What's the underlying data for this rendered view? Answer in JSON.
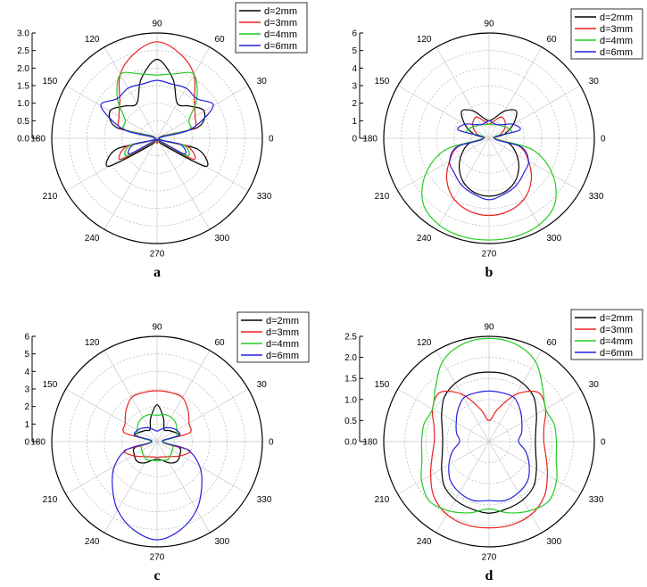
{
  "figure": {
    "panels": [
      {
        "label": "a"
      },
      {
        "label": "b"
      },
      {
        "label": "c"
      },
      {
        "label": "d"
      }
    ]
  },
  "chart_data": [
    {
      "type": "polar",
      "panel": "a",
      "angle_ticks": [
        "0",
        "30",
        "60",
        "90",
        "120",
        "150",
        "180",
        "210",
        "240",
        "270",
        "300",
        "330"
      ],
      "rlim": [
        0,
        3.0
      ],
      "r_ticks": [
        "0.0",
        "0.5",
        "1.0",
        "1.5",
        "2.0",
        "2.5",
        "3.0"
      ],
      "grid": true,
      "legend_position": "top-right",
      "theta_deg": [
        0,
        15,
        30,
        45,
        60,
        75,
        90,
        105,
        120,
        135,
        150,
        165,
        180,
        195,
        210,
        225,
        240,
        255,
        270,
        285,
        300,
        315,
        330,
        345
      ],
      "series": [
        {
          "name": "d=2mm",
          "color": "#000000",
          "r": [
            0.05,
            1.2,
            1.55,
            1.3,
            1.15,
            1.75,
            2.25,
            1.75,
            1.15,
            1.3,
            1.55,
            1.2,
            0.05,
            1.2,
            1.6,
            0.3,
            0.05,
            0.05,
            0.05,
            0.05,
            0.05,
            0.3,
            1.6,
            1.2
          ]
        },
        {
          "name": "d=3mm",
          "color": "#e8201e",
          "r": [
            0.05,
            1.05,
            1.25,
            1.5,
            2.1,
            2.5,
            2.75,
            2.5,
            2.1,
            1.5,
            1.25,
            1.05,
            0.05,
            0.9,
            1.2,
            0.2,
            0.05,
            0.08,
            0.15,
            0.08,
            0.05,
            0.2,
            1.2,
            0.9
          ]
        },
        {
          "name": "d=4mm",
          "color": "#22cc22",
          "r": [
            0.05,
            0.95,
            1.05,
            1.6,
            2.1,
            1.9,
            1.8,
            1.9,
            2.1,
            1.6,
            1.05,
            0.95,
            0.05,
            0.8,
            1.0,
            0.15,
            0.05,
            0.05,
            0.05,
            0.05,
            0.05,
            0.15,
            1.0,
            0.8
          ]
        },
        {
          "name": "d=6mm",
          "color": "#2222dd",
          "r": [
            0.05,
            1.0,
            1.85,
            1.6,
            1.65,
            1.6,
            1.65,
            1.6,
            1.65,
            1.6,
            1.85,
            1.0,
            0.05,
            0.7,
            0.9,
            0.1,
            0.05,
            0.05,
            0.05,
            0.05,
            0.05,
            0.1,
            0.9,
            0.7
          ]
        }
      ]
    },
    {
      "type": "polar",
      "panel": "b",
      "angle_ticks": [
        "0",
        "30",
        "60",
        "90",
        "120",
        "150",
        "180",
        "210",
        "240",
        "270",
        "300",
        "330"
      ],
      "rlim": [
        0,
        6
      ],
      "r_ticks": [
        "0",
        "1",
        "2",
        "3",
        "4",
        "5",
        "6"
      ],
      "grid": true,
      "legend_position": "top-right",
      "theta_deg": [
        0,
        15,
        30,
        45,
        60,
        75,
        90,
        105,
        120,
        135,
        150,
        165,
        180,
        195,
        210,
        225,
        240,
        255,
        270,
        285,
        300,
        315,
        330,
        345
      ],
      "series": [
        {
          "name": "d=2mm",
          "color": "#000000",
          "r": [
            0.3,
            0.9,
            1.6,
            2.2,
            1.8,
            1.2,
            1.0,
            1.2,
            1.8,
            2.2,
            1.6,
            0.9,
            0.3,
            1.2,
            1.8,
            2.4,
            2.9,
            3.2,
            3.3,
            3.2,
            2.9,
            2.4,
            1.8,
            1.2
          ]
        },
        {
          "name": "d=3mm",
          "color": "#e8201e",
          "r": [
            0.3,
            0.6,
            1.0,
            1.3,
            1.4,
            1.0,
            0.8,
            1.0,
            1.4,
            1.3,
            1.0,
            0.6,
            0.3,
            1.8,
            2.6,
            3.4,
            4.0,
            4.3,
            4.4,
            4.3,
            4.0,
            3.4,
            2.6,
            1.8
          ]
        },
        {
          "name": "d=4mm",
          "color": "#22cc22",
          "r": [
            0.3,
            1.3,
            1.2,
            1.0,
            0.9,
            0.8,
            0.8,
            0.8,
            0.9,
            1.0,
            1.2,
            1.3,
            0.3,
            2.6,
            4.2,
            5.3,
            5.7,
            5.8,
            5.8,
            5.8,
            5.7,
            5.3,
            4.2,
            2.6
          ]
        },
        {
          "name": "d=6mm",
          "color": "#2222dd",
          "r": [
            0.3,
            1.8,
            1.6,
            1.1,
            0.9,
            0.9,
            1.0,
            0.9,
            0.9,
            1.1,
            1.6,
            1.8,
            0.3,
            1.9,
            2.6,
            2.8,
            3.1,
            3.3,
            3.5,
            3.3,
            3.1,
            2.8,
            2.6,
            1.9
          ]
        }
      ]
    },
    {
      "type": "polar",
      "panel": "c",
      "angle_ticks": [
        "0",
        "30",
        "60",
        "90",
        "120",
        "150",
        "180",
        "210",
        "240",
        "270",
        "300",
        "330"
      ],
      "rlim": [
        0,
        6
      ],
      "r_ticks": [
        "0",
        "1",
        "2",
        "3",
        "4",
        "5",
        "6"
      ],
      "grid": true,
      "legend_position": "top-right",
      "theta_deg": [
        0,
        15,
        30,
        45,
        60,
        75,
        90,
        105,
        120,
        135,
        150,
        165,
        180,
        195,
        210,
        225,
        240,
        255,
        270,
        285,
        300,
        315,
        330,
        345
      ],
      "series": [
        {
          "name": "d=2mm",
          "color": "#000000",
          "r": [
            0.3,
            1.3,
            1.1,
            0.9,
            0.8,
            1.4,
            2.1,
            1.4,
            0.8,
            0.9,
            1.1,
            1.3,
            0.3,
            1.3,
            1.5,
            1.6,
            1.4,
            1.1,
            1.0,
            1.1,
            1.4,
            1.6,
            1.5,
            1.3
          ]
        },
        {
          "name": "d=3mm",
          "color": "#e8201e",
          "r": [
            0.3,
            1.9,
            2.1,
            2.5,
            2.9,
            2.9,
            2.9,
            2.9,
            2.9,
            2.5,
            2.1,
            1.9,
            0.3,
            1.9,
            1.6,
            1.2,
            1.0,
            0.9,
            0.9,
            0.9,
            1.0,
            1.2,
            1.6,
            1.9
          ]
        },
        {
          "name": "d=4mm",
          "color": "#22cc22",
          "r": [
            0.3,
            1.1,
            1.3,
            1.5,
            1.6,
            1.6,
            1.5,
            1.6,
            1.6,
            1.5,
            1.3,
            1.1,
            0.3,
            0.9,
            1.0,
            1.1,
            1.2,
            1.1,
            1.1,
            1.1,
            1.2,
            1.1,
            1.0,
            0.9
          ]
        },
        {
          "name": "d=6mm",
          "color": "#2222dd",
          "r": [
            0.3,
            1.3,
            1.3,
            1.1,
            0.9,
            0.7,
            0.6,
            0.7,
            0.9,
            1.1,
            1.3,
            1.3,
            0.3,
            1.8,
            2.8,
            3.6,
            4.5,
            5.2,
            5.6,
            5.2,
            4.5,
            3.6,
            2.8,
            1.8
          ]
        }
      ]
    },
    {
      "type": "polar",
      "panel": "d",
      "angle_ticks": [
        "0",
        "30",
        "60",
        "90",
        "120",
        "150",
        "180",
        "210",
        "240",
        "270",
        "300",
        "330"
      ],
      "rlim": [
        0,
        2.5
      ],
      "r_ticks": [
        "0.0",
        "0.5",
        "1.0",
        "1.5",
        "2.0",
        "2.5"
      ],
      "grid": true,
      "legend_position": "top-right",
      "theta_deg": [
        0,
        15,
        30,
        45,
        60,
        75,
        90,
        105,
        120,
        135,
        150,
        165,
        180,
        195,
        210,
        225,
        240,
        255,
        270,
        285,
        300,
        315,
        330,
        345
      ],
      "series": [
        {
          "name": "d=2mm",
          "color": "#000000",
          "r": [
            1.1,
            1.15,
            1.3,
            1.5,
            1.6,
            1.65,
            1.65,
            1.65,
            1.6,
            1.5,
            1.3,
            1.15,
            1.1,
            1.15,
            1.3,
            1.5,
            1.6,
            1.65,
            1.7,
            1.65,
            1.6,
            1.5,
            1.3,
            1.15
          ]
        },
        {
          "name": "d=3mm",
          "color": "#e8201e",
          "r": [
            1.3,
            1.35,
            1.55,
            1.65,
            1.3,
            0.8,
            0.5,
            0.8,
            1.3,
            1.65,
            1.55,
            1.35,
            1.3,
            1.4,
            1.6,
            1.85,
            2.0,
            2.05,
            2.05,
            2.05,
            2.0,
            1.85,
            1.6,
            1.4
          ]
        },
        {
          "name": "d=4mm",
          "color": "#22cc22",
          "r": [
            1.6,
            1.6,
            1.55,
            1.8,
            2.2,
            2.4,
            2.45,
            2.4,
            2.2,
            1.8,
            1.55,
            1.6,
            1.6,
            1.65,
            1.85,
            2.0,
            1.9,
            1.75,
            1.6,
            1.75,
            1.9,
            2.0,
            1.85,
            1.65
          ]
        },
        {
          "name": "d=6mm",
          "color": "#2222dd",
          "r": [
            0.7,
            0.8,
            0.9,
            1.05,
            1.2,
            1.2,
            1.2,
            1.2,
            1.2,
            1.05,
            0.9,
            0.8,
            0.7,
            0.9,
            1.1,
            1.3,
            1.4,
            1.45,
            1.4,
            1.45,
            1.4,
            1.3,
            1.1,
            0.9
          ]
        }
      ]
    }
  ]
}
